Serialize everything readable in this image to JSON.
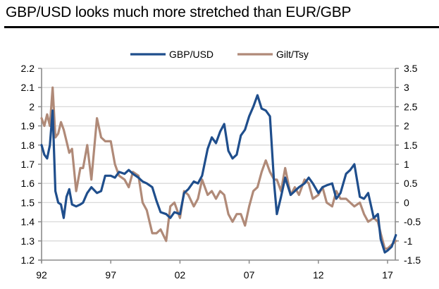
{
  "chart_data": {
    "type": "line",
    "title": "GBP/USD looks much more stretched than EUR/GBP",
    "xlabel": "",
    "ylabel": "",
    "y2label": "",
    "legend_position": "top-center",
    "grid": true,
    "x_ticks": [
      "92",
      "97",
      "02",
      "07",
      "12",
      "17"
    ],
    "x_tick_years": [
      1992,
      1997,
      2002,
      2007,
      2012,
      2017
    ],
    "xlim": [
      1992,
      2017.8
    ],
    "y_left": {
      "ylim": [
        1.2,
        2.2
      ],
      "ticks": [
        "1.2",
        "1.3",
        "1.4",
        "1.5",
        "1.6",
        "1.7",
        "1.8",
        "1.9",
        "2",
        "2.1",
        "2.2"
      ],
      "tick_values": [
        1.2,
        1.3,
        1.4,
        1.5,
        1.6,
        1.7,
        1.8,
        1.9,
        2.0,
        2.1,
        2.2
      ]
    },
    "y_right": {
      "ylim": [
        -1.5,
        3.5
      ],
      "ticks": [
        "-1.5",
        "-1",
        "-0.5",
        "0",
        "0.5",
        "1",
        "1.5",
        "2",
        "2.5",
        "3",
        "3.5"
      ],
      "tick_values": [
        -1.5,
        -1,
        -0.5,
        0,
        0.5,
        1,
        1.5,
        2,
        2.5,
        3,
        3.5
      ]
    },
    "series": [
      {
        "name": "GBP/USD",
        "axis": "left",
        "color": "#1f4e8c",
        "x": [
          1992.0,
          1992.2,
          1992.4,
          1992.6,
          1992.8,
          1993.0,
          1993.2,
          1993.4,
          1993.6,
          1993.8,
          1994.0,
          1994.2,
          1994.5,
          1994.8,
          1995.0,
          1995.3,
          1995.6,
          1996.0,
          1996.3,
          1996.6,
          1997.0,
          1997.3,
          1997.6,
          1998.0,
          1998.3,
          1998.6,
          1999.0,
          1999.3,
          1999.6,
          2000.0,
          2000.3,
          2000.6,
          2001.0,
          2001.3,
          2001.6,
          2002.0,
          2002.3,
          2002.6,
          2003.0,
          2003.3,
          2003.6,
          2004.0,
          2004.3,
          2004.6,
          2004.9,
          2005.2,
          2005.5,
          2005.8,
          2006.1,
          2006.4,
          2006.7,
          2007.0,
          2007.3,
          2007.6,
          2007.9,
          2008.2,
          2008.5,
          2008.8,
          2009.0,
          2009.3,
          2009.6,
          2010.0,
          2010.3,
          2010.6,
          2011.0,
          2011.3,
          2011.6,
          2012.0,
          2012.3,
          2012.6,
          2013.0,
          2013.3,
          2013.6,
          2014.0,
          2014.3,
          2014.6,
          2015.0,
          2015.3,
          2015.6,
          2016.0,
          2016.3,
          2016.5,
          2016.8,
          2017.0,
          2017.3,
          2017.6
        ],
        "values": [
          1.8,
          1.75,
          1.73,
          1.8,
          1.98,
          1.56,
          1.5,
          1.49,
          1.42,
          1.53,
          1.57,
          1.49,
          1.48,
          1.49,
          1.5,
          1.55,
          1.58,
          1.55,
          1.56,
          1.64,
          1.64,
          1.63,
          1.66,
          1.65,
          1.67,
          1.65,
          1.63,
          1.61,
          1.6,
          1.58,
          1.51,
          1.45,
          1.44,
          1.42,
          1.45,
          1.44,
          1.55,
          1.57,
          1.61,
          1.6,
          1.64,
          1.78,
          1.84,
          1.81,
          1.87,
          1.91,
          1.77,
          1.73,
          1.75,
          1.85,
          1.88,
          1.95,
          2.0,
          2.06,
          1.99,
          1.98,
          1.95,
          1.6,
          1.44,
          1.53,
          1.63,
          1.54,
          1.56,
          1.58,
          1.6,
          1.63,
          1.6,
          1.55,
          1.58,
          1.59,
          1.6,
          1.52,
          1.55,
          1.65,
          1.67,
          1.7,
          1.53,
          1.52,
          1.55,
          1.42,
          1.44,
          1.31,
          1.24,
          1.25,
          1.27,
          1.33
        ]
      },
      {
        "name": "Gilt/Tsy",
        "axis": "right",
        "color": "#b08a78",
        "x": [
          1992.0,
          1992.2,
          1992.4,
          1992.6,
          1992.8,
          1993.0,
          1993.2,
          1993.4,
          1993.6,
          1993.8,
          1994.0,
          1994.2,
          1994.5,
          1994.8,
          1995.0,
          1995.3,
          1995.6,
          1996.0,
          1996.3,
          1996.6,
          1997.0,
          1997.3,
          1997.6,
          1998.0,
          1998.3,
          1998.6,
          1999.0,
          1999.3,
          1999.6,
          2000.0,
          2000.3,
          2000.6,
          2001.0,
          2001.3,
          2001.6,
          2002.0,
          2002.3,
          2002.6,
          2003.0,
          2003.3,
          2003.6,
          2004.0,
          2004.3,
          2004.6,
          2004.9,
          2005.2,
          2005.5,
          2005.8,
          2006.1,
          2006.4,
          2006.7,
          2007.0,
          2007.3,
          2007.6,
          2007.9,
          2008.2,
          2008.5,
          2008.8,
          2009.0,
          2009.3,
          2009.6,
          2010.0,
          2010.3,
          2010.6,
          2011.0,
          2011.3,
          2011.6,
          2012.0,
          2012.3,
          2012.6,
          2013.0,
          2013.3,
          2013.6,
          2014.0,
          2014.3,
          2014.6,
          2015.0,
          2015.3,
          2015.6,
          2016.0,
          2016.3,
          2016.5,
          2016.8,
          2017.0,
          2017.3,
          2017.6
        ],
        "values": [
          2.2,
          2.0,
          2.3,
          2.0,
          3.0,
          1.7,
          1.8,
          2.1,
          1.9,
          1.6,
          1.3,
          1.4,
          0.3,
          0.9,
          0.9,
          1.5,
          0.6,
          2.2,
          1.7,
          1.6,
          1.6,
          1.0,
          0.7,
          0.6,
          0.4,
          0.8,
          0.7,
          0.0,
          -0.2,
          -0.8,
          -0.8,
          -0.7,
          -1.0,
          -0.1,
          0.0,
          -0.4,
          0.3,
          0.2,
          -0.1,
          0.1,
          0.6,
          0.2,
          0.3,
          0.1,
          0.3,
          0.2,
          -0.3,
          -0.5,
          -0.3,
          -0.3,
          -0.6,
          -0.1,
          0.3,
          0.4,
          0.8,
          1.1,
          0.8,
          0.6,
          0.6,
          0.3,
          0.9,
          0.2,
          0.4,
          0.2,
          0.6,
          0.5,
          0.1,
          0.2,
          0.4,
          0.0,
          -0.1,
          0.3,
          0.1,
          0.1,
          0.0,
          -0.1,
          0.0,
          -0.3,
          -0.5,
          -0.4,
          -0.5,
          -0.8,
          -1.2,
          -1.2,
          -1.1,
          -1.0
        ]
      }
    ]
  }
}
